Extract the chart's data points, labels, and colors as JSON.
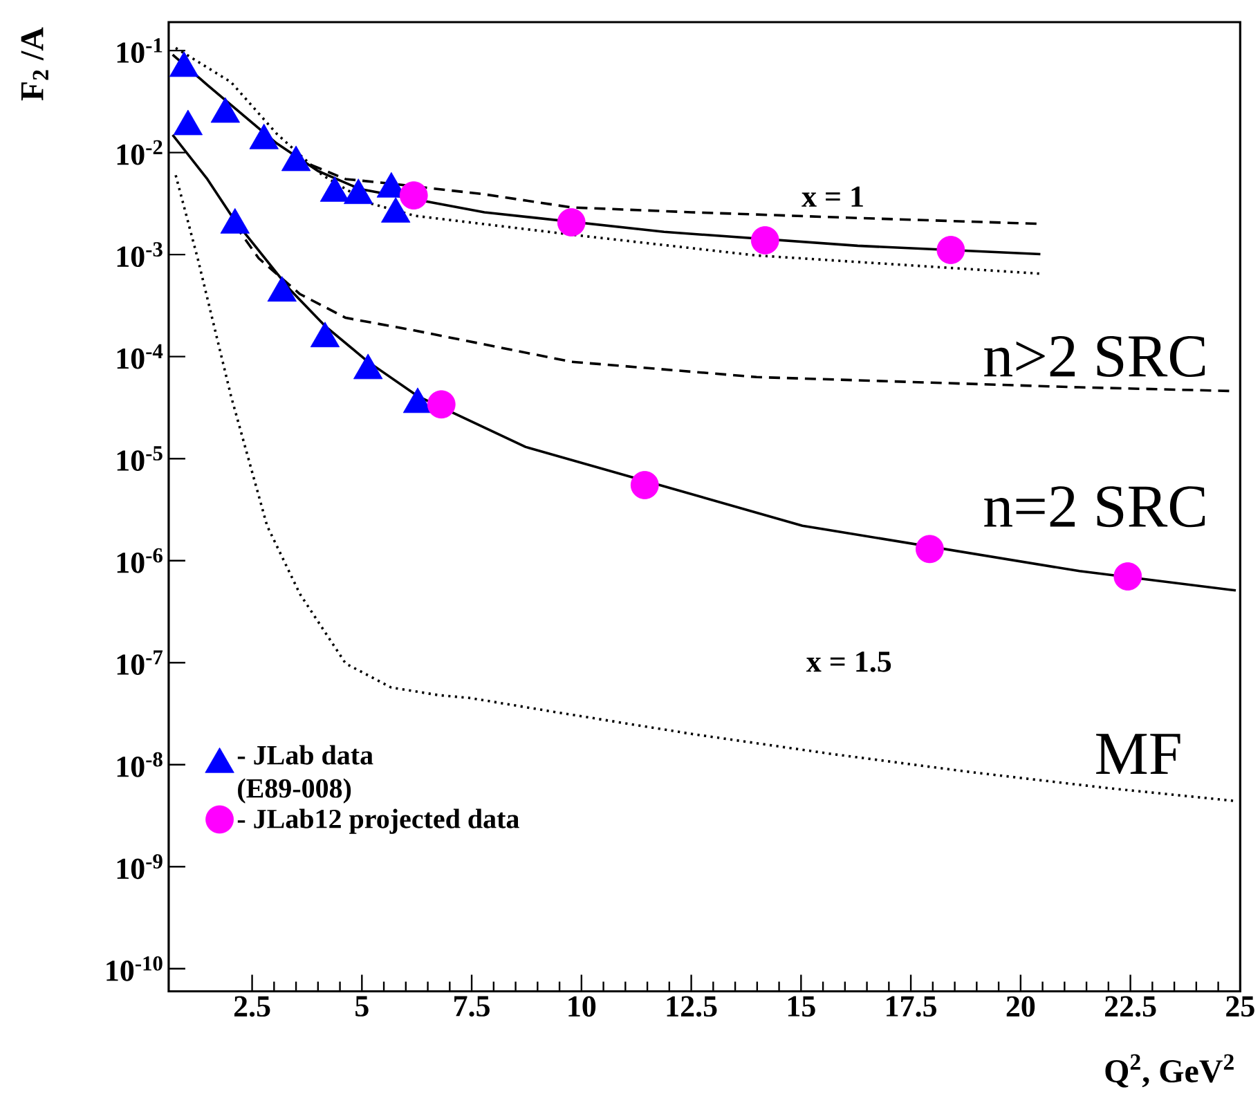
{
  "chart_data": {
    "type": "line",
    "xlabel": "Q$^{2}$, GeV$^{2}$",
    "ylabel": "F$_{2}$ /A",
    "log": "y",
    "xlim": [
      0.6,
      25
    ],
    "ylim": [
      6e-11,
      0.19
    ],
    "xticks": [
      2.5,
      5,
      7.5,
      10,
      12.5,
      15,
      17.5,
      20,
      22.5,
      25
    ],
    "yticks": [
      {
        "value": 0.1,
        "label": "10$^{-1}$"
      },
      {
        "value": 0.01,
        "label": "10$^{-2}$"
      },
      {
        "value": 0.001,
        "label": "10$^{-3}$"
      },
      {
        "value": 0.0001,
        "label": "10$^{-4}$"
      },
      {
        "value": 1e-05,
        "label": "10$^{-5}$"
      },
      {
        "value": 1e-06,
        "label": "10$^{-6}$"
      },
      {
        "value": 1e-07,
        "label": "10$^{-7}$"
      },
      {
        "value": 1e-08,
        "label": "10$^{-8}$"
      },
      {
        "value": 1e-09,
        "label": "10$^{-9}$"
      },
      {
        "value": 1e-10,
        "label": "10$^{-10}$"
      }
    ],
    "legend": "bottom left",
    "annotations": [
      "x = 1",
      "n>2 SRC",
      "n=2 SRC",
      "x = 1.5",
      "MF"
    ],
    "series": [
      {
        "line_style": "solid",
        "color": "#000000",
        "x": [
          0.69,
          1.48,
          2.27,
          3.06,
          4.0,
          4.95,
          7.79,
          11.88,
          16.29,
          20.45
        ],
        "values": [
          0.091,
          0.046,
          0.0238,
          0.0123,
          0.0066,
          0.0044,
          0.0026,
          0.00167,
          0.00122,
          0.00101
        ]
      },
      {
        "line_style": "dashed",
        "color": "#000000",
        "x": [
          3.47,
          4.63,
          5.58,
          7.79,
          9.77,
          12.51,
          16.07,
          20.45
        ],
        "values": [
          0.0088,
          0.0055,
          0.005,
          0.0039,
          0.0029,
          0.0026,
          0.0023,
          0.002
        ]
      },
      {
        "line_style": "dotted",
        "color": "#000000",
        "x": [
          0.76,
          2.02,
          3.06,
          4.1,
          5.17,
          6.21,
          9.77,
          13.99,
          20.45
        ],
        "values": [
          0.106,
          0.049,
          0.0153,
          0.006,
          0.0032,
          0.0024,
          0.00157,
          0.00098,
          0.00065
        ]
      },
      {
        "line_style": "solid",
        "color": "#000000",
        "x": [
          0.69,
          1.48,
          2.11,
          2.74,
          3.37,
          4.16,
          5.14,
          6.27,
          8.73,
          15.03,
          21.34,
          24.9
        ],
        "values": [
          0.0149,
          0.0055,
          0.00214,
          0.00098,
          0.00045,
          0.0002,
          8.9e-05,
          4.1e-05,
          1.3e-05,
          2.2e-06,
          7.9e-07,
          5.1e-07
        ]
      },
      {
        "line_style": "dashed",
        "color": "#000000",
        "x": [
          2.11,
          2.65,
          3.59,
          4.63,
          6.21,
          9.77,
          13.99,
          21.34,
          24.8
        ],
        "values": [
          0.00195,
          0.00092,
          0.00041,
          0.00024,
          0.00018,
          8.9e-05,
          6.3e-05,
          5e-05,
          4.6e-05
        ]
      },
      {
        "line_style": "dotted",
        "color": "#000000",
        "x": [
          0.76,
          1.26,
          2.02,
          2.84,
          3.59,
          4.63,
          5.67,
          6.75,
          7.47,
          9.36,
          12.51,
          15.66,
          18.82,
          21.97,
          24.9
        ],
        "values": [
          0.006,
          0.00092,
          4.1e-05,
          2.2e-06,
          4.7e-07,
          9.8e-08,
          5.7e-08,
          4.8e-08,
          4.5e-08,
          3.3e-08,
          2e-08,
          1.28e-08,
          8.5e-09,
          5.9e-09,
          4.4e-09
        ]
      },
      {
        "type": "scatter",
        "marker": "triangle",
        "name": "- JLab data (E89-008)",
        "color": "#0000ff",
        "x": [
          0.95,
          1.89,
          2.77,
          3.5,
          4.38,
          4.92,
          5.67,
          5.77,
          1.04,
          2.11,
          3.18,
          4.16,
          5.14,
          6.27
        ],
        "values": [
          0.067,
          0.0238,
          0.0131,
          0.008,
          0.004,
          0.0038,
          0.0044,
          0.0025,
          0.018,
          0.00195,
          0.00042,
          0.00015,
          7.3e-05,
          3.4e-05
        ]
      },
      {
        "type": "scatter",
        "marker": "circle",
        "name": "- JLab12 projected data",
        "color": "#ff00ff",
        "x": [
          6.18,
          9.77,
          14.18,
          18.41,
          6.81,
          11.44,
          17.93,
          22.44
        ],
        "values": [
          0.0038,
          0.00207,
          0.00138,
          0.00111,
          3.4e-05,
          5.5e-06,
          1.3e-06,
          7e-07
        ]
      }
    ]
  }
}
